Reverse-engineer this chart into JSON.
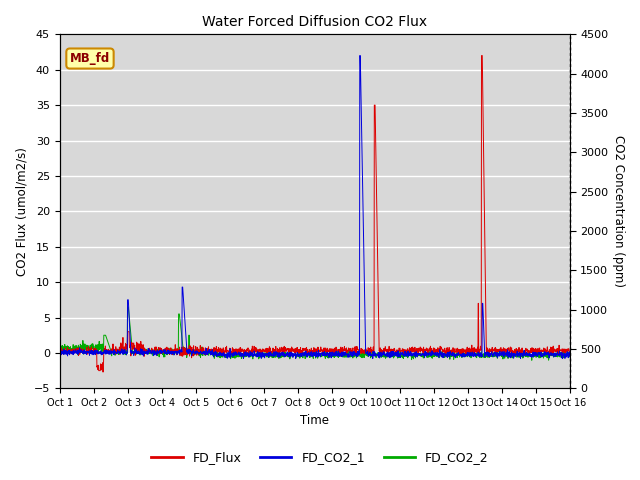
{
  "title": "Water Forced Diffusion CO2 Flux",
  "ylabel_left": "CO2 Flux (umol/m2/s)",
  "ylabel_right": "CO2 Concentration (ppm)",
  "xlabel": "Time",
  "ylim_left": [
    -5,
    45
  ],
  "ylim_right": [
    0,
    4500
  ],
  "yticks_left": [
    -5,
    0,
    5,
    10,
    15,
    20,
    25,
    30,
    35,
    40,
    45
  ],
  "yticks_right": [
    0,
    500,
    1000,
    1500,
    2000,
    2500,
    3000,
    3500,
    4000,
    4500
  ],
  "xtick_labels": [
    "Oct 1",
    "Oct 2",
    "Oct 3",
    "Oct 4",
    "Oct 5",
    "Oct 6",
    "Oct 7",
    "Oct 8",
    "Oct 9",
    "Oct 10",
    "Oct 11",
    "Oct 12",
    "Oct 13",
    "Oct 14",
    "Oct 15",
    "Oct 16"
  ],
  "label_box_text": "MB_fd",
  "line_colors": {
    "FD_Flux": "#dd0000",
    "FD_CO2_1": "#0000dd",
    "FD_CO2_2": "#00aa00"
  },
  "background_color": "#d8d8d8",
  "fig_background": "#ffffff",
  "n_points": 2000,
  "num_days": 15,
  "random_seed": 42
}
